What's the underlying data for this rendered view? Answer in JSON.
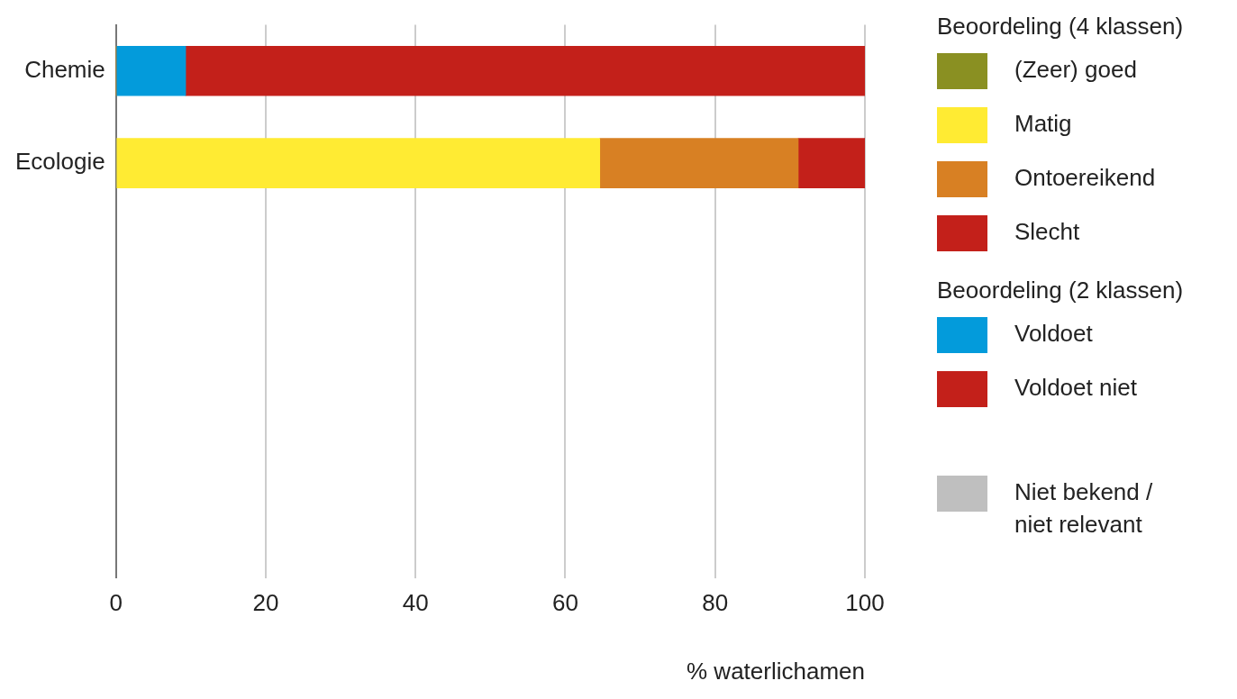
{
  "chart_data": {
    "type": "bar",
    "orientation": "horizontal",
    "stacked": true,
    "categories": [
      "Chemie",
      "Ecologie",
      null,
      null,
      null,
      null
    ],
    "xlabel": "% waterlichamen",
    "xlim": [
      0,
      100
    ],
    "xticks": [
      0,
      20,
      40,
      60,
      80,
      100
    ],
    "grid": "x",
    "legend": "right",
    "legend_title": "Beoordeling (4 klassen)",
    "annotations": [
      "Beoordeling (2 klassen)"
    ],
    "series": [
      {
        "name": "(Zeer) goed",
        "color": "#8a9022",
        "values": [
          0,
          0,
          null,
          null,
          null,
          null
        ]
      },
      {
        "name": "Matig",
        "color": "#ffeb33",
        "values": [
          0,
          64.6,
          null,
          null,
          null,
          null
        ]
      },
      {
        "name": "Ontoereikend",
        "color": "#d88023",
        "values": [
          0,
          26.5,
          null,
          null,
          null,
          null
        ]
      },
      {
        "name": "Slecht",
        "color": "#c3201a",
        "values": [
          0,
          8.9,
          null,
          null,
          null,
          null
        ]
      },
      {
        "name": "Voldoet",
        "color": "#039bdb",
        "values": [
          9.3,
          0,
          null,
          null,
          null,
          null
        ]
      },
      {
        "name": "Voldoet niet",
        "color": "#c3201a",
        "values": [
          90.7,
          0,
          null,
          null,
          null,
          null
        ]
      },
      {
        "name": "Niet bekend / niet relevant",
        "color": "#bfbfbf",
        "values": [
          0,
          0,
          null,
          null,
          null,
          null
        ]
      }
    ]
  }
}
